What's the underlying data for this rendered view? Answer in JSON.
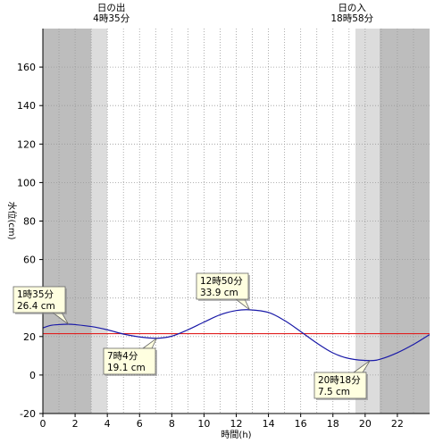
{
  "chart_data": {
    "type": "line",
    "xlabel": "時間(h)",
    "ylabel": "水位(cm)",
    "xlim": [
      0,
      24
    ],
    "ylim": [
      -20,
      180
    ],
    "x_ticks": [
      0,
      2,
      4,
      6,
      8,
      10,
      12,
      14,
      16,
      18,
      20,
      22
    ],
    "y_ticks": [
      -20,
      0,
      20,
      40,
      60,
      80,
      100,
      120,
      140,
      160
    ],
    "grid": true,
    "reference_line": {
      "y": 21.5,
      "color": "#e02020"
    },
    "series": [
      {
        "color": "#1a1aa8",
        "x": [
          0,
          0.5,
          1,
          1.583,
          2,
          3,
          4,
          5,
          6,
          7.067,
          8,
          9,
          10,
          11,
          12,
          12.833,
          14,
          15,
          16,
          17,
          18,
          19,
          20.3,
          21,
          22,
          23,
          24
        ],
        "y": [
          24.5,
          25.8,
          26.2,
          26.4,
          26.2,
          25.2,
          23.5,
          21.3,
          19.8,
          19.1,
          20.2,
          23.5,
          27.5,
          31.3,
          33.5,
          33.9,
          32.5,
          28.3,
          22.6,
          16.6,
          11.5,
          8.6,
          7.5,
          8.4,
          11.6,
          15.9,
          21.0
        ]
      }
    ],
    "sun": {
      "sunrise_title": "日の出",
      "sunrise_time": "4時35分",
      "sunrise_hour": 4.583,
      "sunset_title": "日の入",
      "sunset_time": "18時58分",
      "sunset_hour": 18.967,
      "night_color": "#bdbdbd",
      "twilight_color": "#dcdcdc",
      "day_color": "#ffffff",
      "twilight_bands": [
        [
          3,
          4
        ],
        [
          19.4,
          20.9
        ]
      ]
    },
    "annotations": [
      {
        "time": "1時35分",
        "value": "26.4 cm",
        "x": 1.583,
        "y": 26.4
      },
      {
        "time": "7時4分",
        "value": "19.1 cm",
        "x": 7.067,
        "y": 19.1
      },
      {
        "time": "12時50分",
        "value": "33.9 cm",
        "x": 12.833,
        "y": 33.9
      },
      {
        "time": "20時18分",
        "value": "7.5 cm",
        "x": 20.3,
        "y": 7.5
      }
    ]
  }
}
